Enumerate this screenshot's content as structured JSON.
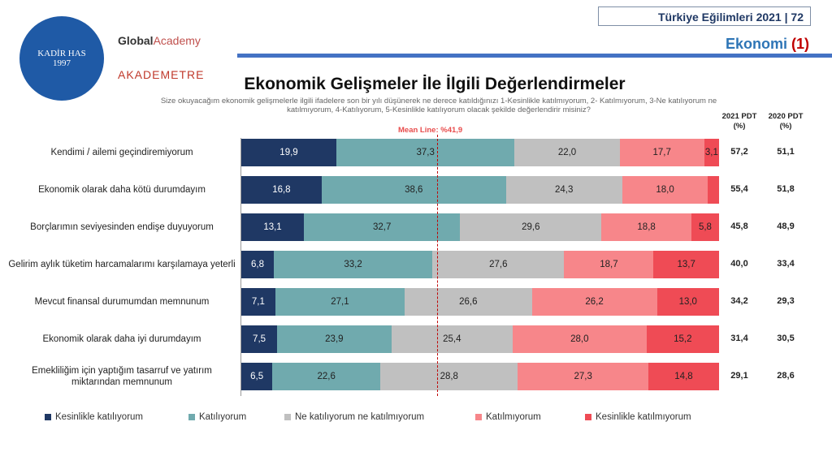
{
  "header": {
    "report": "Türkiye Eğilimleri 2021",
    "page": "72",
    "section": "Ekonomi",
    "section_num": "(1)"
  },
  "logos": {
    "seal": "KADİR HAS ÜNİVERSİTESİ 1997",
    "global": "Global",
    "academy": "Academy",
    "akademetre": "AKADEMETRE"
  },
  "chart_data": {
    "type": "bar",
    "stacked": true,
    "title": "Ekonomik Gelişmeler İle İlgili Değerlendirmeler",
    "subtitle": "Size okuyacağım ekonomik gelişmelerle ilgili ifadelere son bir yılı düşünerek ne derece katıldığınızı 1-Kesinlikle katılmıyorum, 2- Katılmıyorum, 3-Ne katılıyorum ne katılmıyorum, 4-Katılıyorum, 5-Kesinlikle katılıyorum olacak şekilde değerlendirir misiniz?",
    "mean_line_label": "Mean Line: %41,9",
    "mean_line": 41.9,
    "col_2021": "2021 PDT (%)",
    "col_2020": "2020 PDT (%)",
    "categories": [
      "Kendimi / ailemi geçindiremiyorum",
      "Ekonomik olarak daha kötü durumdayım",
      "Borçlarımın seviyesinden endişe duyuyorum",
      "Gelirim aylık tüketim harcamalarımı karşılamaya yeterli",
      "Mevcut finansal durumumdan memnunum",
      "Ekonomik olarak daha iyi durumdayım",
      "Emekliliğim için yaptığım tasarruf ve yatırım miktarından memnunum"
    ],
    "series": [
      {
        "name": "Kesinlikle katılıyorum",
        "color": "#1f3864",
        "values": [
          19.9,
          16.8,
          13.1,
          6.8,
          7.1,
          7.5,
          6.5
        ]
      },
      {
        "name": "Katılıyorum",
        "color": "#70aaae",
        "values": [
          37.3,
          38.6,
          32.7,
          33.2,
          27.1,
          23.9,
          22.6
        ]
      },
      {
        "name": "Ne katılıyorum ne katılmıyorum",
        "color": "#c0c0c0",
        "values": [
          22.0,
          24.3,
          29.6,
          27.6,
          26.6,
          25.4,
          28.8
        ]
      },
      {
        "name": "Katılmıyorum",
        "color": "#f7868a",
        "values": [
          17.7,
          18.0,
          18.8,
          18.7,
          26.2,
          28.0,
          27.3
        ]
      },
      {
        "name": "Kesinlikle katılmıyorum",
        "color": "#ef4b55",
        "values": [
          3.1,
          2.3,
          5.8,
          13.7,
          13.0,
          15.2,
          14.8
        ]
      }
    ],
    "hidden_labels": [
      [
        1,
        4
      ]
    ],
    "pdt_2021": [
      "57,2",
      "55,4",
      "45,8",
      "40,0",
      "34,2",
      "31,4",
      "29,1"
    ],
    "pdt_2020": [
      "51,1",
      "51,8",
      "48,9",
      "33,4",
      "29,3",
      "30,5",
      "28,6"
    ],
    "xlim": [
      0,
      100
    ],
    "legend": "bottom"
  }
}
